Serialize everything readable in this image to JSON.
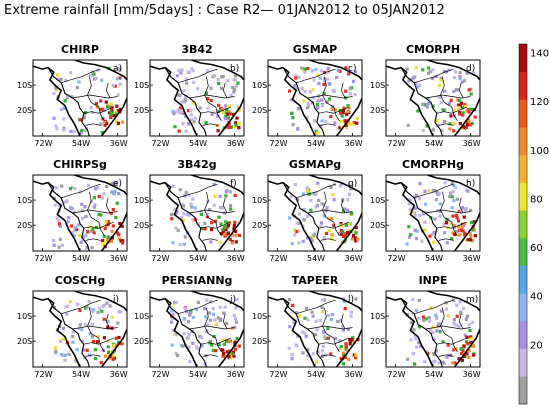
{
  "title": "Extreme rainfall [mm/5days] : Case R2— 01JAN2012 to 05JAN2012",
  "panels": [
    {
      "name": "CHIRP",
      "letter": "a)"
    },
    {
      "name": "3B42",
      "letter": "b)"
    },
    {
      "name": "GSMAP",
      "letter": "c)"
    },
    {
      "name": "CMORPH",
      "letter": "d)"
    },
    {
      "name": "CHIRPSg",
      "letter": "e)"
    },
    {
      "name": "3B42g",
      "letter": "f)"
    },
    {
      "name": "GSMAPg",
      "letter": "g)"
    },
    {
      "name": "CMORPHg",
      "letter": "h)"
    },
    {
      "name": "COSCHg",
      "letter": "i)"
    },
    {
      "name": "PERSIANNg",
      "letter": "j)"
    },
    {
      "name": "TAPEER",
      "letter": "l)"
    },
    {
      "name": "INPE",
      "letter": "m)"
    }
  ],
  "lat_ticks": [
    "10S",
    "20S"
  ],
  "lon_ticks": [
    "72W",
    "54W",
    "36W"
  ],
  "colorbar": {
    "labels": [
      "20",
      "40",
      "60",
      "80",
      "100",
      "120",
      "140"
    ],
    "colors": [
      "#9e9e9e",
      "#c8b8e6",
      "#a890dc",
      "#8cb4ee",
      "#58a8e8",
      "#48bc48",
      "#8cd232",
      "#f0e62c",
      "#f0b42c",
      "#ee8a28",
      "#e85a1c",
      "#d8241c",
      "#a80c0c"
    ]
  }
}
